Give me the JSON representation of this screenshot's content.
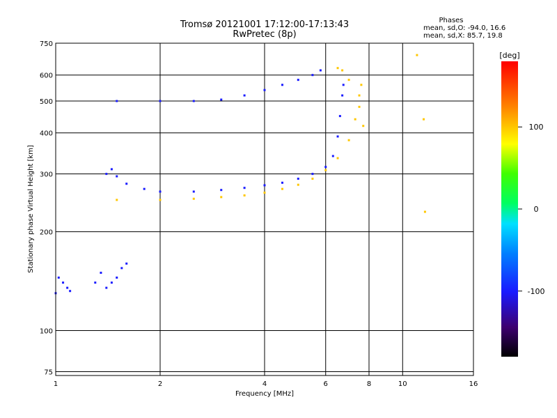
{
  "chart_data": {
    "type": "scatter",
    "title": "Tromsø 20121001 17:12:00-17:13:43",
    "subtitle": "RwPretec (8p)",
    "stats_title": "Phases",
    "stats_o": "mean, sd,O: -94.0, 16.6",
    "stats_x": "mean, sd,X:  85.7, 19.8",
    "xlabel": "Frequency [MHz]",
    "ylabel": "Stationary phase Virtual Height [km]",
    "x_scale": "log",
    "y_scale": "log",
    "xlim": [
      1,
      16
    ],
    "ylim": [
      73,
      750
    ],
    "x_ticks": [
      1,
      2,
      4,
      6,
      8,
      10,
      16
    ],
    "x_tick_labels": [
      "1",
      "2",
      "4",
      "6",
      "8",
      "10",
      "16"
    ],
    "y_ticks": [
      75,
      100,
      200,
      300,
      400,
      500,
      600,
      750
    ],
    "y_tick_labels": [
      "75",
      "100",
      "200",
      "300",
      "400",
      "500",
      "600",
      "750"
    ],
    "grid": true,
    "colorbar": {
      "label": "[deg]",
      "range": [
        -180,
        180
      ],
      "ticks": [
        -100,
        0,
        100
      ],
      "tick_labels": [
        "-100",
        "0",
        "100"
      ]
    },
    "series": [
      {
        "points": [
          [
            1.0,
            130
          ],
          [
            1.02,
            145
          ],
          [
            1.05,
            140
          ],
          [
            1.08,
            135
          ],
          [
            1.1,
            132
          ],
          [
            1.3,
            140
          ],
          [
            1.35,
            150
          ],
          [
            1.4,
            135
          ],
          [
            1.45,
            140
          ],
          [
            1.5,
            145
          ],
          [
            1.55,
            155
          ],
          [
            1.6,
            160
          ]
        ],
        "phase": -100
      },
      {
        "points": [
          [
            1.4,
            300
          ],
          [
            1.45,
            310
          ],
          [
            1.5,
            295
          ],
          [
            1.6,
            280
          ],
          [
            1.8,
            270
          ],
          [
            2.0,
            265
          ],
          [
            2.5,
            265
          ],
          [
            3.0,
            268
          ],
          [
            3.5,
            272
          ],
          [
            4.0,
            277
          ],
          [
            4.5,
            282
          ],
          [
            5.0,
            290
          ],
          [
            5.5,
            300
          ],
          [
            6.0,
            315
          ],
          [
            6.3,
            340
          ],
          [
            6.5,
            390
          ],
          [
            6.6,
            450
          ],
          [
            6.7,
            520
          ],
          [
            6.75,
            560
          ]
        ],
        "phase": -100
      },
      {
        "points": [
          [
            1.5,
            250
          ],
          [
            2.0,
            250
          ],
          [
            2.5,
            252
          ],
          [
            3.0,
            255
          ],
          [
            3.5,
            258
          ],
          [
            4.0,
            263
          ],
          [
            4.5,
            270
          ],
          [
            5.0,
            278
          ],
          [
            5.5,
            290
          ],
          [
            6.0,
            308
          ],
          [
            6.5,
            335
          ],
          [
            7.0,
            380
          ],
          [
            7.3,
            440
          ],
          [
            7.5,
            520
          ],
          [
            7.6,
            560
          ]
        ],
        "phase": 100
      },
      {
        "points": [
          [
            1.5,
            500
          ],
          [
            2.0,
            500
          ],
          [
            2.5,
            500
          ],
          [
            3.0,
            505
          ],
          [
            3.5,
            520
          ],
          [
            4.0,
            540
          ],
          [
            4.5,
            560
          ],
          [
            5.0,
            580
          ],
          [
            5.5,
            600
          ],
          [
            5.8,
            620
          ]
        ],
        "phase": -100
      },
      {
        "points": [
          [
            6.5,
            630
          ],
          [
            6.7,
            620
          ],
          [
            7.0,
            580
          ],
          [
            7.5,
            480
          ],
          [
            7.7,
            420
          ],
          [
            11.0,
            690
          ],
          [
            11.5,
            440
          ],
          [
            11.6,
            230
          ]
        ],
        "phase": 100
      }
    ]
  }
}
